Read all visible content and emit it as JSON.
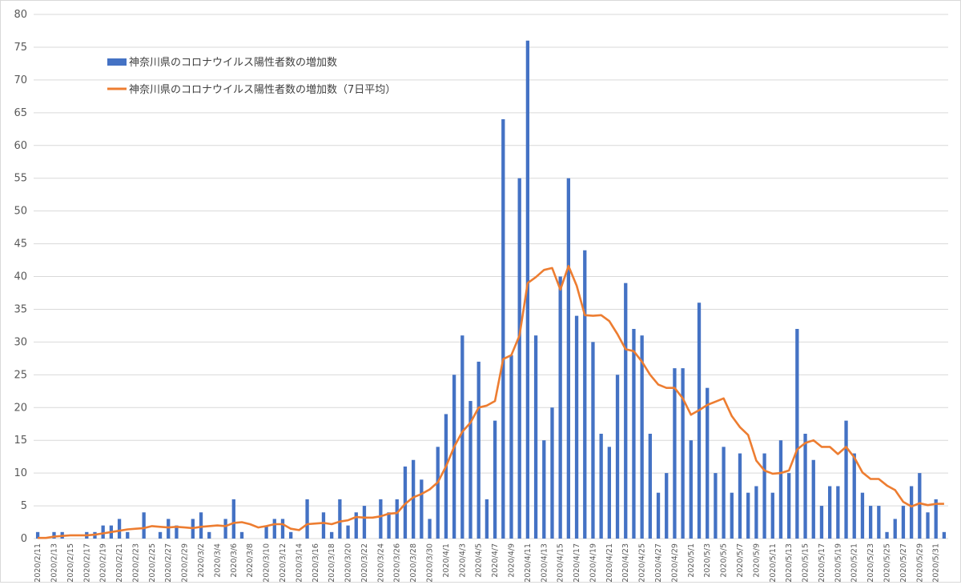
{
  "chart_data": {
    "type": "bar",
    "ylim": [
      0,
      80
    ],
    "yticks": [
      0,
      5,
      10,
      15,
      20,
      25,
      30,
      35,
      40,
      45,
      50,
      55,
      60,
      65,
      70,
      75,
      80
    ],
    "grid": true,
    "legend_position": "top-left",
    "colors": {
      "bars": "#4472c4",
      "line": "#ed7d31",
      "grid": "#d9d9d9"
    },
    "x": [
      "2020/2/11",
      "2020/2/12",
      "2020/2/13",
      "2020/2/14",
      "2020/2/15",
      "2020/2/16",
      "2020/2/17",
      "2020/2/18",
      "2020/2/19",
      "2020/2/20",
      "2020/2/21",
      "2020/2/22",
      "2020/2/23",
      "2020/2/24",
      "2020/2/25",
      "2020/2/26",
      "2020/2/27",
      "2020/2/28",
      "2020/2/29",
      "2020/3/1",
      "2020/3/2",
      "2020/3/3",
      "2020/3/4",
      "2020/3/5",
      "2020/3/6",
      "2020/3/7",
      "2020/3/8",
      "2020/3/9",
      "2020/3/10",
      "2020/3/11",
      "2020/3/12",
      "2020/3/13",
      "2020/3/14",
      "2020/3/15",
      "2020/3/16",
      "2020/3/17",
      "2020/3/18",
      "2020/3/19",
      "2020/3/20",
      "2020/3/21",
      "2020/3/22",
      "2020/3/23",
      "2020/3/24",
      "2020/3/25",
      "2020/3/26",
      "2020/3/27",
      "2020/3/28",
      "2020/3/29",
      "2020/3/30",
      "2020/3/31",
      "2020/4/1",
      "2020/4/2",
      "2020/4/3",
      "2020/4/4",
      "2020/4/5",
      "2020/4/6",
      "2020/4/7",
      "2020/4/8",
      "2020/4/9",
      "2020/4/10",
      "2020/4/11",
      "2020/4/12",
      "2020/4/13",
      "2020/4/14",
      "2020/4/15",
      "2020/4/16",
      "2020/4/17",
      "2020/4/18",
      "2020/4/19",
      "2020/4/20",
      "2020/4/21",
      "2020/4/22",
      "2020/4/23",
      "2020/4/24",
      "2020/4/25",
      "2020/4/26",
      "2020/4/27",
      "2020/4/28",
      "2020/4/29",
      "2020/4/30",
      "2020/5/1",
      "2020/5/2",
      "2020/5/3",
      "2020/5/4",
      "2020/5/5",
      "2020/5/6",
      "2020/5/7",
      "2020/5/8",
      "2020/5/9",
      "2020/5/10",
      "2020/5/11",
      "2020/5/12",
      "2020/5/13",
      "2020/5/14",
      "2020/5/15",
      "2020/5/16",
      "2020/5/17",
      "2020/5/18",
      "2020/5/19",
      "2020/5/20",
      "2020/5/21",
      "2020/5/22",
      "2020/5/23",
      "2020/5/24",
      "2020/5/25",
      "2020/5/26",
      "2020/5/27",
      "2020/5/28",
      "2020/5/29",
      "2020/5/30",
      "2020/5/31",
      "2020/6/1"
    ],
    "series": [
      {
        "name": "神奈川県のコロナウイルス陽性者数の増加数",
        "kind": "bar",
        "values": [
          1,
          0,
          1,
          1,
          0,
          0,
          1,
          1,
          2,
          2,
          3,
          1,
          0,
          4,
          0,
          1,
          3,
          2,
          0,
          3,
          4,
          1,
          0,
          3,
          6,
          1,
          0,
          0,
          2,
          3,
          3,
          1,
          0,
          6,
          0,
          4,
          1,
          6,
          2,
          4,
          5,
          0,
          6,
          4,
          6,
          11,
          12,
          9,
          3,
          14,
          19,
          25,
          31,
          21,
          27,
          6,
          18,
          64,
          28,
          55,
          76,
          31,
          15,
          20,
          40,
          55,
          34,
          44,
          30,
          16,
          14,
          25,
          39,
          32,
          31,
          16,
          7,
          10,
          26,
          26,
          15,
          36,
          23,
          10,
          14,
          7,
          13,
          7,
          8,
          13,
          7,
          15,
          10,
          32,
          16,
          12,
          5,
          8,
          8,
          18,
          13,
          7,
          5,
          5,
          1,
          3,
          5,
          8,
          10,
          4,
          6,
          1
        ]
      },
      {
        "name": "神奈川県のコロナウイルス陽性者数の増加数（7日平均）",
        "kind": "line",
        "values": [
          0.1,
          0.1,
          0.3,
          0.4,
          0.5,
          0.5,
          0.5,
          0.6,
          0.8,
          1.0,
          1.2,
          1.4,
          1.5,
          1.6,
          1.9,
          1.8,
          1.7,
          1.8,
          1.7,
          1.6,
          1.8,
          1.9,
          2.0,
          1.9,
          2.4,
          2.5,
          2.2,
          1.7,
          1.9,
          2.2,
          2.2,
          1.5,
          1.3,
          2.2,
          2.3,
          2.4,
          2.2,
          2.6,
          2.8,
          3.3,
          3.2,
          3.2,
          3.4,
          3.8,
          3.9,
          5.3,
          6.3,
          6.8,
          7.5,
          8.6,
          11.0,
          14.0,
          16.3,
          17.7,
          20.0,
          20.3,
          21.0,
          27.4,
          28.0,
          31.0,
          39.0,
          39.9,
          41.0,
          41.3,
          38.0,
          41.6,
          38.6,
          34.1,
          34.0,
          34.1,
          33.2,
          31.2,
          28.9,
          28.6,
          27.0,
          25.0,
          23.5,
          23.0,
          23.0,
          21.4,
          18.9,
          19.6,
          20.4,
          20.9,
          21.4,
          18.7,
          17.0,
          15.8,
          11.9,
          10.4,
          9.9,
          10.0,
          10.4,
          13.6,
          14.6,
          15.0,
          14.0,
          14.0,
          12.9,
          14.0,
          12.4,
          10.1,
          9.1,
          9.1,
          8.1,
          7.4,
          5.6,
          4.9,
          5.4,
          5.1,
          5.3,
          5.3
        ]
      }
    ]
  }
}
